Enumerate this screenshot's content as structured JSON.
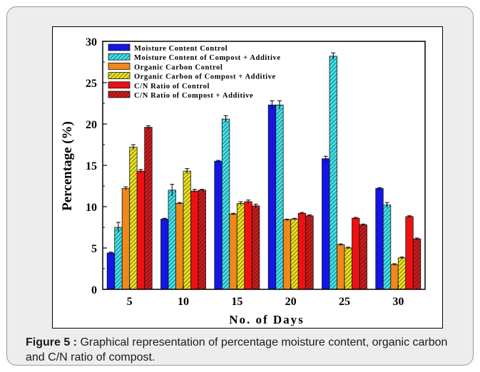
{
  "chart_data": {
    "type": "bar",
    "categories": [
      "5",
      "10",
      "15",
      "20",
      "25",
      "30"
    ],
    "series": [
      {
        "name": "Moisture Content Control",
        "values": [
          4.4,
          8.5,
          15.5,
          22.3,
          15.8,
          12.2
        ],
        "errors": [
          0.1,
          0.1,
          0.1,
          0.5,
          0.3,
          0.1
        ],
        "color": "#1515e6",
        "pattern": "solid"
      },
      {
        "name": "Moisture Content of Compost + Additive",
        "values": [
          7.5,
          12.0,
          20.6,
          22.3,
          28.2,
          10.2
        ],
        "errors": [
          0.6,
          0.7,
          0.4,
          0.5,
          0.4,
          0.3
        ],
        "color": "#40e0e8",
        "pattern": "hatch"
      },
      {
        "name": "Organic Carbon Control",
        "values": [
          12.2,
          10.4,
          9.1,
          8.4,
          5.4,
          3.0
        ],
        "errors": [
          0.2,
          0.1,
          0.1,
          0.1,
          0.1,
          0.1
        ],
        "color": "#f0881c",
        "pattern": "solid"
      },
      {
        "name": "Organic Carbon of Compost + Additive",
        "values": [
          17.2,
          14.3,
          10.4,
          8.5,
          5.0,
          3.8
        ],
        "errors": [
          0.3,
          0.3,
          0.2,
          0.1,
          0.1,
          0.1
        ],
        "color": "#e8e020",
        "pattern": "hatch"
      },
      {
        "name": "C/N Ratio of Control",
        "values": [
          14.3,
          11.9,
          10.6,
          9.2,
          8.6,
          8.8
        ],
        "errors": [
          0.2,
          0.2,
          0.2,
          0.1,
          0.1,
          0.1
        ],
        "color": "#ee1111",
        "pattern": "solid"
      },
      {
        "name": "C/N Ratio of Compost + Additive",
        "values": [
          19.6,
          12.0,
          10.1,
          8.9,
          7.8,
          6.1
        ],
        "errors": [
          0.2,
          0.1,
          0.2,
          0.1,
          0.1,
          0.1
        ],
        "color": "#cc1a1a",
        "pattern": "hatch"
      }
    ],
    "xlabel": "No. of Days",
    "ylabel": "Percentage (%)",
    "ylim": [
      0,
      30
    ],
    "yticks": [
      "0",
      "5",
      "10",
      "15",
      "20",
      "25",
      "30"
    ],
    "legend_position": "top-left"
  },
  "caption": {
    "label": "Figure 5 :",
    "text": "Graphical representation of percentage moisture content, organic carbon and C/N ratio of compost."
  }
}
